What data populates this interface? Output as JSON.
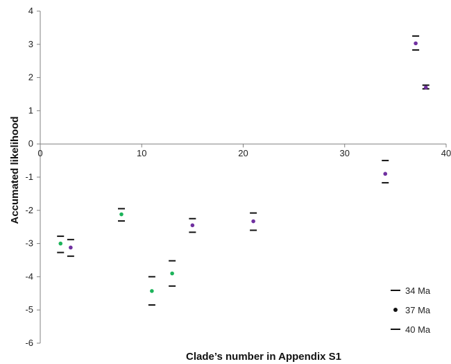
{
  "chart_data": {
    "type": "scatter",
    "title": "",
    "xlabel": "Clade’s number in Appendix S1",
    "ylabel": "Accumated likelihood",
    "xlim": [
      0,
      40
    ],
    "ylim": [
      -6,
      4
    ],
    "xticks": [
      "0",
      "10",
      "20",
      "30",
      "40"
    ],
    "yticks": [
      "-6",
      "-5",
      "-4",
      "-3",
      "-2",
      "-1",
      "0",
      "1",
      "2",
      "3",
      "4"
    ],
    "grid": false,
    "legend_position": "bottom-right",
    "legend": [
      {
        "label": "34 Ma",
        "marker": "dash"
      },
      {
        "label": "37 Ma",
        "marker": "dot"
      },
      {
        "label": "40 Ma",
        "marker": "dash"
      }
    ],
    "colors": {
      "green": "#1db35a",
      "purple": "#7030a0",
      "dash": "#111111"
    },
    "points": [
      {
        "x": 2,
        "ma34": -2.78,
        "ma37": -3.0,
        "ma40": -3.27,
        "color": "green"
      },
      {
        "x": 3,
        "ma34": -2.88,
        "ma37": -3.12,
        "ma40": -3.38,
        "color": "purple"
      },
      {
        "x": 8,
        "ma34": -1.95,
        "ma37": -2.12,
        "ma40": -2.32,
        "color": "green"
      },
      {
        "x": 11,
        "ma34": -4.0,
        "ma37": -4.43,
        "ma40": -4.85,
        "color": "green"
      },
      {
        "x": 13,
        "ma34": -3.52,
        "ma37": -3.9,
        "ma40": -4.28,
        "color": "green"
      },
      {
        "x": 15,
        "ma34": -2.25,
        "ma37": -2.45,
        "ma40": -2.66,
        "color": "purple"
      },
      {
        "x": 21,
        "ma34": -2.08,
        "ma37": -2.33,
        "ma40": -2.6,
        "color": "purple"
      },
      {
        "x": 34,
        "ma34": -0.5,
        "ma37": -0.9,
        "ma40": -1.17,
        "color": "purple"
      },
      {
        "x": 37,
        "ma34": 3.25,
        "ma37": 3.03,
        "ma40": 2.83,
        "color": "purple"
      },
      {
        "x": 38,
        "ma34": 1.77,
        "ma37": 1.7,
        "ma40": 1.66,
        "color": "purple"
      }
    ]
  }
}
